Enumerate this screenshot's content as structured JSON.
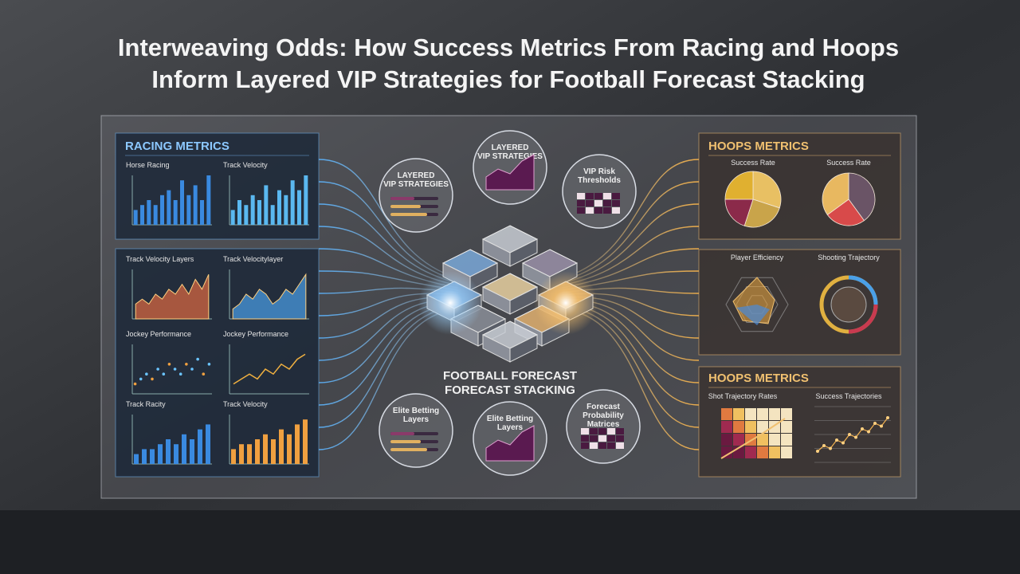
{
  "title_lines": [
    "Interweaving Odds: How Success Metrics From Racing and Hoops",
    "Inform Layered VIP Strategies for Football Forecast Stacking"
  ],
  "left": {
    "heading": "RACING METRICS",
    "charts": [
      {
        "title": "Horse Racing",
        "type": "bar",
        "ylim": [
          0,
          10
        ],
        "values": [
          3,
          4,
          5,
          4,
          6,
          7,
          5,
          9,
          6,
          8,
          5,
          10
        ]
      },
      {
        "title": "Track Velocity",
        "type": "bar",
        "ylim": [
          0,
          10
        ],
        "values": [
          3,
          5,
          4,
          6,
          5,
          8,
          4,
          7,
          6,
          9,
          7,
          10
        ]
      },
      {
        "title": "Track Velocity Layers",
        "type": "area",
        "ylim": [
          0,
          10
        ],
        "values": [
          3,
          4,
          3,
          5,
          4,
          6,
          5,
          7,
          5,
          8,
          6,
          9
        ]
      },
      {
        "title": "Track Velocitylayer",
        "type": "area",
        "ylim": [
          0,
          10
        ],
        "values": [
          2,
          3,
          5,
          4,
          6,
          5,
          3,
          4,
          6,
          5,
          7,
          9
        ]
      },
      {
        "title": "Jockey Performance",
        "type": "scatter",
        "ylim": [
          0,
          10
        ],
        "values": [
          2,
          3,
          4,
          3,
          5,
          4,
          6,
          5,
          4,
          6,
          5,
          7,
          4,
          6
        ]
      },
      {
        "title": "Jockey Performance",
        "type": "line",
        "ylim": [
          0,
          10
        ],
        "values": [
          2,
          3,
          4,
          3,
          5,
          4,
          6,
          5,
          7,
          8
        ]
      },
      {
        "title": "Track Racity",
        "type": "bar",
        "ylim": [
          0,
          10
        ],
        "values": [
          2,
          3,
          3,
          4,
          5,
          4,
          6,
          5,
          7,
          8
        ]
      },
      {
        "title": "Track Velocity",
        "type": "bar",
        "ylim": [
          0,
          10
        ],
        "values": [
          3,
          4,
          4,
          5,
          6,
          5,
          7,
          6,
          8,
          9
        ]
      }
    ]
  },
  "center": {
    "circles": [
      [
        "LAYERED",
        "VIP STRATEGIES"
      ],
      [
        "LAYERED",
        "VIP STRATEGIES"
      ],
      [
        "VIP Risk",
        "Thresholds"
      ],
      [
        "Elite Betting",
        "Layers"
      ],
      [
        "Elite Betting",
        "Layers"
      ],
      [
        "Forecast",
        "Probability",
        "Matrices"
      ]
    ],
    "caption": [
      "FOOTBALL FORECAST",
      "FORECAST STACKING"
    ]
  },
  "right": {
    "heading": "HOOPS METRICS",
    "heading2": "HOOPS METRICS",
    "pies": [
      {
        "title": "Success Rate",
        "values": [
          30,
          25,
          20,
          25
        ],
        "colors": [
          "#e8c063",
          "#c9a44a",
          "#8b2a4a",
          "#e0b030"
        ]
      },
      {
        "title": "Success Rate",
        "values": [
          40,
          25,
          35
        ],
        "colors": [
          "#6a5466",
          "#d84a4a",
          "#e8b860"
        ]
      }
    ],
    "labels": [
      "Player Efficiency",
      "Shooting Trajectory",
      "Shot Trajectory Rates",
      "Success Trajectories"
    ],
    "trend": {
      "ylim": [
        0,
        10
      ],
      "values": [
        2,
        3,
        2.5,
        4,
        3.5,
        5,
        4.5,
        6,
        5.5,
        7,
        6.5,
        8
      ]
    }
  }
}
